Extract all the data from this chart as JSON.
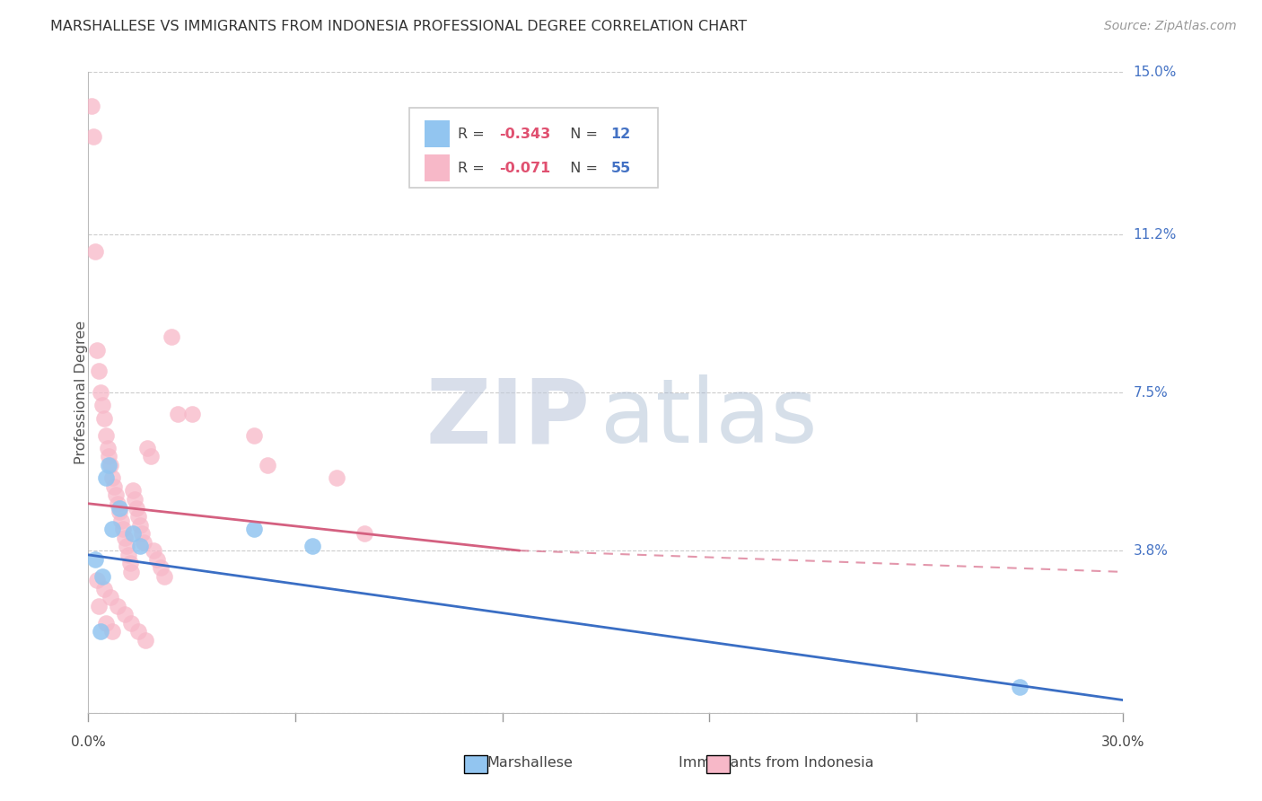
{
  "title": "MARSHALLESE VS IMMIGRANTS FROM INDONESIA PROFESSIONAL DEGREE CORRELATION CHART",
  "source": "Source: ZipAtlas.com",
  "ylabel": "Professional Degree",
  "xlim": [
    0.0,
    30.0
  ],
  "ylim": [
    0.0,
    15.0
  ],
  "ytick_vals": [
    0.0,
    3.8,
    7.5,
    11.2,
    15.0
  ],
  "ytick_labels": [
    "",
    "3.8%",
    "7.5%",
    "11.2%",
    "15.0%"
  ],
  "xtick_vals": [
    0,
    6,
    12,
    18,
    24,
    30
  ],
  "xtick_labels": [
    "0.0%",
    "",
    "",
    "",
    "",
    "30.0%"
  ],
  "blue_color": "#92C5F0",
  "pink_color": "#F7B8C8",
  "blue_line_color": "#3A6EC4",
  "pink_line_color": "#D46080",
  "r_color": "#E05070",
  "n_color": "#4472C4",
  "legend_blue_r": "-0.343",
  "legend_blue_n": "12",
  "legend_pink_r": "-0.071",
  "legend_pink_n": "55",
  "blue_scatter_x": [
    0.2,
    0.4,
    0.5,
    0.6,
    0.7,
    0.9,
    1.3,
    1.5,
    4.8,
    6.5,
    0.35,
    27.0
  ],
  "blue_scatter_y": [
    3.6,
    3.2,
    5.5,
    5.8,
    4.3,
    4.8,
    4.2,
    3.9,
    4.3,
    3.9,
    1.9,
    0.6
  ],
  "pink_scatter_x": [
    0.1,
    0.15,
    0.2,
    0.25,
    0.3,
    0.35,
    0.4,
    0.45,
    0.5,
    0.55,
    0.6,
    0.65,
    0.7,
    0.75,
    0.8,
    0.85,
    0.9,
    0.95,
    1.0,
    1.05,
    1.1,
    1.15,
    1.2,
    1.25,
    1.3,
    1.35,
    1.4,
    1.45,
    1.5,
    1.55,
    1.6,
    1.7,
    1.8,
    1.9,
    2.0,
    2.1,
    2.2,
    2.4,
    2.6,
    3.0,
    4.8,
    5.2,
    0.25,
    0.45,
    0.65,
    0.85,
    1.05,
    1.25,
    1.45,
    1.65,
    7.2,
    8.0,
    0.3,
    0.5,
    0.7
  ],
  "pink_scatter_y": [
    14.2,
    13.5,
    10.8,
    8.5,
    8.0,
    7.5,
    7.2,
    6.9,
    6.5,
    6.2,
    6.0,
    5.8,
    5.5,
    5.3,
    5.1,
    4.9,
    4.7,
    4.5,
    4.3,
    4.1,
    3.9,
    3.7,
    3.5,
    3.3,
    5.2,
    5.0,
    4.8,
    4.6,
    4.4,
    4.2,
    4.0,
    6.2,
    6.0,
    3.8,
    3.6,
    3.4,
    3.2,
    8.8,
    7.0,
    7.0,
    6.5,
    5.8,
    3.1,
    2.9,
    2.7,
    2.5,
    2.3,
    2.1,
    1.9,
    1.7,
    5.5,
    4.2,
    2.5,
    2.1,
    1.9
  ],
  "blue_trend_x0": 0.0,
  "blue_trend_x1": 30.0,
  "blue_trend_y0": 3.7,
  "blue_trend_y1": 0.3,
  "pink_solid_x0": 0.0,
  "pink_solid_x1": 12.5,
  "pink_solid_y0": 4.9,
  "pink_solid_y1": 3.8,
  "pink_dash_x0": 12.5,
  "pink_dash_x1": 30.0,
  "pink_dash_y0": 3.8,
  "pink_dash_y1": 3.3
}
